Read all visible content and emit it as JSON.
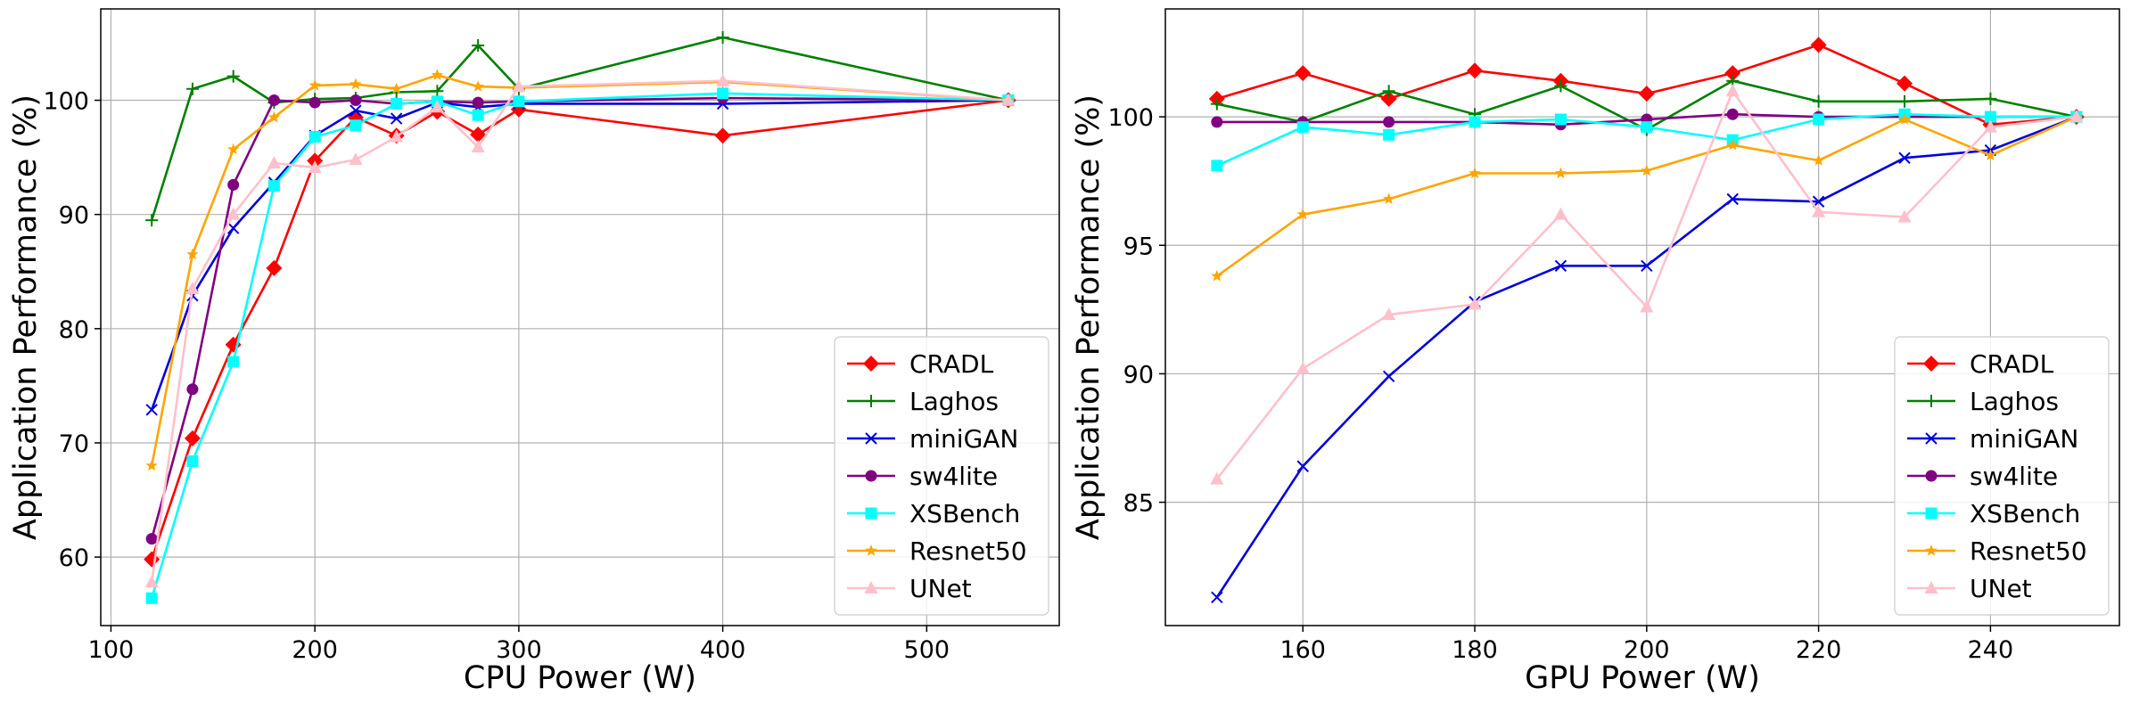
{
  "chart_data": [
    {
      "type": "line",
      "xlabel": "CPU Power (W)",
      "ylabel": "Application Performance (%)",
      "xlim": [
        95,
        565
      ],
      "ylim": [
        54,
        108
      ],
      "xticks": [
        100,
        200,
        300,
        400,
        500
      ],
      "yticks": [
        60,
        70,
        80,
        90,
        100
      ],
      "grid": true,
      "legend_position": "bottom-right",
      "x": [
        120,
        140,
        160,
        180,
        200,
        220,
        240,
        260,
        280,
        300,
        400,
        540
      ],
      "series": [
        {
          "name": "CRADL",
          "color": "#ff0000",
          "marker": "diamond",
          "values": [
            59.8,
            70.4,
            78.6,
            85.3,
            94.7,
            98.5,
            96.9,
            99.0,
            97.0,
            99.2,
            96.9,
            100.0
          ]
        },
        {
          "name": "Laghos",
          "color": "#008000",
          "marker": "plus",
          "values": [
            89.5,
            101.0,
            102.1,
            99.8,
            100.1,
            100.2,
            100.7,
            100.8,
            104.8,
            101.0,
            105.5,
            100.0
          ]
        },
        {
          "name": "miniGAN",
          "color": "#0000dd",
          "marker": "x",
          "values": [
            72.9,
            82.9,
            88.8,
            92.8,
            96.9,
            99.1,
            98.4,
            99.8,
            99.4,
            99.7,
            99.7,
            100.0
          ]
        },
        {
          "name": "sw4lite",
          "color": "#800080",
          "marker": "circle",
          "values": [
            61.6,
            74.7,
            92.6,
            100.0,
            99.8,
            100.0,
            99.7,
            99.9,
            99.8,
            99.9,
            100.2,
            100.0
          ]
        },
        {
          "name": "XSBench",
          "color": "#00ffff",
          "marker": "square",
          "values": [
            56.4,
            68.4,
            77.1,
            92.5,
            96.8,
            97.8,
            99.7,
            99.9,
            98.7,
            99.9,
            100.6,
            100.0
          ]
        },
        {
          "name": "Resnet50",
          "color": "#ffa500",
          "marker": "star",
          "values": [
            68.0,
            86.5,
            95.7,
            98.5,
            101.3,
            101.4,
            101.0,
            102.2,
            101.2,
            101.1,
            101.6,
            100.0
          ]
        },
        {
          "name": "UNet",
          "color": "#ffc0cb",
          "marker": "triangle",
          "values": [
            57.8,
            83.5,
            90.0,
            94.5,
            94.1,
            94.8,
            96.8,
            99.4,
            95.9,
            101.2,
            101.7,
            100.0
          ]
        }
      ]
    },
    {
      "type": "line",
      "xlabel": "GPU Power (W)",
      "ylabel": "Application Performance (%)",
      "xlim": [
        144,
        255
      ],
      "ylim": [
        80.2,
        104.2
      ],
      "xticks": [
        160,
        180,
        200,
        220,
        240
      ],
      "yticks": [
        85,
        90,
        95,
        100
      ],
      "grid": true,
      "legend_position": "bottom-right",
      "x": [
        150,
        160,
        170,
        180,
        190,
        200,
        210,
        220,
        230,
        240,
        250
      ],
      "series": [
        {
          "name": "CRADL",
          "color": "#ff0000",
          "marker": "diamond",
          "values": [
            100.7,
            101.7,
            100.7,
            101.8,
            101.4,
            100.9,
            101.7,
            102.8,
            101.3,
            99.7,
            100.0
          ]
        },
        {
          "name": "Laghos",
          "color": "#008000",
          "marker": "plus",
          "values": [
            100.5,
            99.8,
            101.0,
            100.1,
            101.2,
            99.5,
            101.4,
            100.6,
            100.6,
            100.7,
            100.0
          ]
        },
        {
          "name": "miniGAN",
          "color": "#0000dd",
          "marker": "x",
          "values": [
            81.3,
            86.4,
            89.9,
            92.8,
            94.2,
            94.2,
            96.8,
            96.7,
            98.4,
            98.7,
            100.0
          ]
        },
        {
          "name": "sw4lite",
          "color": "#800080",
          "marker": "circle",
          "values": [
            99.8,
            99.8,
            99.8,
            99.8,
            99.7,
            99.9,
            100.1,
            100.0,
            100.0,
            100.0,
            100.0
          ]
        },
        {
          "name": "XSBench",
          "color": "#00ffff",
          "marker": "square",
          "values": [
            98.1,
            99.6,
            99.3,
            99.8,
            99.9,
            99.6,
            99.1,
            99.9,
            100.1,
            100.0,
            100.0
          ]
        },
        {
          "name": "Resnet50",
          "color": "#ffa500",
          "marker": "star",
          "values": [
            93.8,
            96.2,
            96.8,
            97.8,
            97.8,
            97.9,
            98.9,
            98.3,
            99.9,
            98.5,
            100.0
          ]
        },
        {
          "name": "UNet",
          "color": "#ffc0cb",
          "marker": "triangle",
          "values": [
            85.9,
            90.2,
            92.3,
            92.7,
            96.2,
            92.6,
            101.0,
            96.3,
            96.1,
            99.6,
            100.0
          ]
        }
      ]
    }
  ]
}
